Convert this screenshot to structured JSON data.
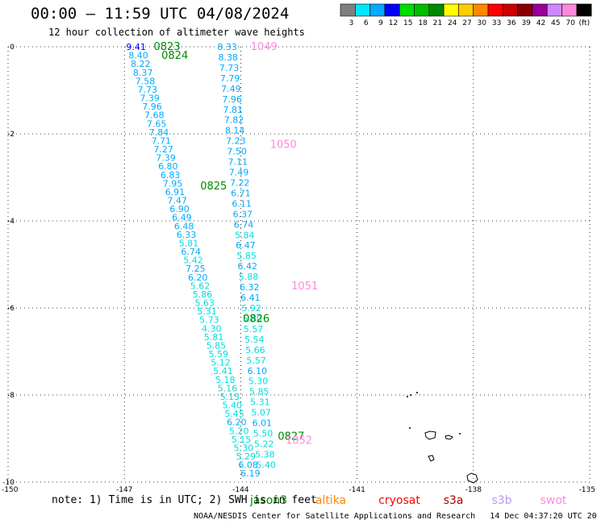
{
  "header": {
    "title": "00:00 – 11:59 UTC 04/08/2024",
    "subtitle": "12 hour collection of altimeter wave heights"
  },
  "colorbar": {
    "bins": [
      {
        "label": "3",
        "color": "#7f7f7f"
      },
      {
        "label": "6",
        "color": "#00e5ff"
      },
      {
        "label": "9",
        "color": "#00aaff"
      },
      {
        "label": "12",
        "color": "#0000ff"
      },
      {
        "label": "15",
        "color": "#00dd00"
      },
      {
        "label": "18",
        "color": "#00bb00"
      },
      {
        "label": "21",
        "color": "#008800"
      },
      {
        "label": "24",
        "color": "#ffff00"
      },
      {
        "label": "27",
        "color": "#ffcc00"
      },
      {
        "label": "30",
        "color": "#ff8800"
      },
      {
        "label": "33",
        "color": "#ff0000"
      },
      {
        "label": "36",
        "color": "#cc0000"
      },
      {
        "label": "39",
        "color": "#880000"
      },
      {
        "label": "42",
        "color": "#990099"
      },
      {
        "label": "45",
        "color": "#cc88ff"
      },
      {
        "label": "70",
        "color": "#ff88dd"
      },
      {
        "label": "(ft)",
        "color": "#000000"
      }
    ]
  },
  "footer": {
    "note": "note:  1) Time is in UTC; 2) SWH is in feet",
    "credit": "NOAA/NESDIS Center for Satellite Applications and Research   14 Dec 04:37:20 UTC 2024",
    "satellites": [
      {
        "name": "jason3",
        "color": "#008800"
      },
      {
        "name": "altika",
        "color": "#ff8800"
      },
      {
        "name": "cryosat",
        "color": "#ff0000"
      },
      {
        "name": "s3a",
        "color": "#aa0000"
      },
      {
        "name": "s3b",
        "color": "#bb99ee"
      },
      {
        "name": "swot",
        "color": "#ff88dd"
      }
    ]
  },
  "chart_data": {
    "type": "scatter",
    "title": "00:00 – 11:59 UTC 04/08/2024",
    "subtitle": "12 hour collection of altimeter wave heights",
    "xlim": [
      -150,
      -135
    ],
    "ylim": [
      -10,
      0
    ],
    "x_ticks": [
      "-150",
      "-147",
      "-144",
      "-141",
      "-138",
      "-135"
    ],
    "y_ticks": [
      "0",
      "-2",
      "-4",
      "-6",
      "-8",
      "-10"
    ],
    "grid": true,
    "tracks": [
      {
        "satellite": "jason3",
        "color": "#00ccdd",
        "x_start": -146.7,
        "x_end": -143.75,
        "lat_start": 0.0,
        "lat_end": -9.8,
        "values": [
          "9.41",
          "8.40",
          "8.22",
          "8.37",
          "7.58",
          "7.73",
          "7.39",
          "7.96",
          "7.68",
          "7.65",
          "7.84",
          "7.71",
          "7.27",
          "7.39",
          "6.80",
          "6.83",
          "7.95",
          "6.91",
          "7.47",
          "6.90",
          "6.49",
          "6.48",
          "6.33",
          "5.81",
          "6.74",
          "5.42",
          "7.25",
          "6.20",
          "5.62",
          "5.86",
          "5.63",
          "5.31",
          "5.73",
          "4.30",
          "5.81",
          "5.85",
          "5.59",
          "5.12",
          "5.41",
          "5.18",
          "5.16",
          "5.15",
          "5.40",
          "5.45",
          "6.20",
          "5.20",
          "5.15",
          "5.30",
          "5.29",
          "6.08",
          "6.19"
        ]
      },
      {
        "satellite": "jason3",
        "color": "#00ccdd",
        "x_start": -144.35,
        "x_end": -143.35,
        "lat_start": 0.0,
        "lat_end": -9.6,
        "values": [
          "8.33",
          "8.38",
          "7.73",
          "7.79",
          "7.49",
          "7.96",
          "7.81",
          "7.82",
          "8.14",
          "7.23",
          "7.50",
          "7.11",
          "7.49",
          "7.22",
          "6.71",
          "6.11",
          "6.37",
          "6.74",
          "5.84",
          "6.47",
          "5.85",
          "6.42",
          "5.88",
          "6.32",
          "6.41",
          "5.92",
          "5.80",
          "5.57",
          "5.54",
          "5.66",
          "5.57",
          "6.10",
          "5.30",
          "5.85",
          "5.31",
          "5.07",
          "6.01",
          "5.50",
          "5.22",
          "5.38",
          "5.40"
        ]
      }
    ],
    "time_labels": [
      {
        "text": "0823",
        "lon": -145.9,
        "lat": 0.0,
        "color": "#008800"
      },
      {
        "text": "0824",
        "lon": -145.7,
        "lat": -0.2,
        "color": "#008800"
      },
      {
        "text": "0825",
        "lon": -144.7,
        "lat": -3.2,
        "color": "#008800"
      },
      {
        "text": "0826",
        "lon": -143.6,
        "lat": -6.25,
        "color": "#008800"
      },
      {
        "text": "0827",
        "lon": -142.7,
        "lat": -8.95,
        "color": "#008800"
      },
      {
        "text": "1049",
        "lon": -143.4,
        "lat": 0.0,
        "color": "#ff88dd"
      },
      {
        "text": "1050",
        "lon": -142.9,
        "lat": -2.25,
        "color": "#ff88dd"
      },
      {
        "text": "1051",
        "lon": -142.35,
        "lat": -5.5,
        "color": "#ff88dd"
      },
      {
        "text": "1052",
        "lon": -142.5,
        "lat": -9.05,
        "color": "#ff88dd"
      }
    ]
  }
}
